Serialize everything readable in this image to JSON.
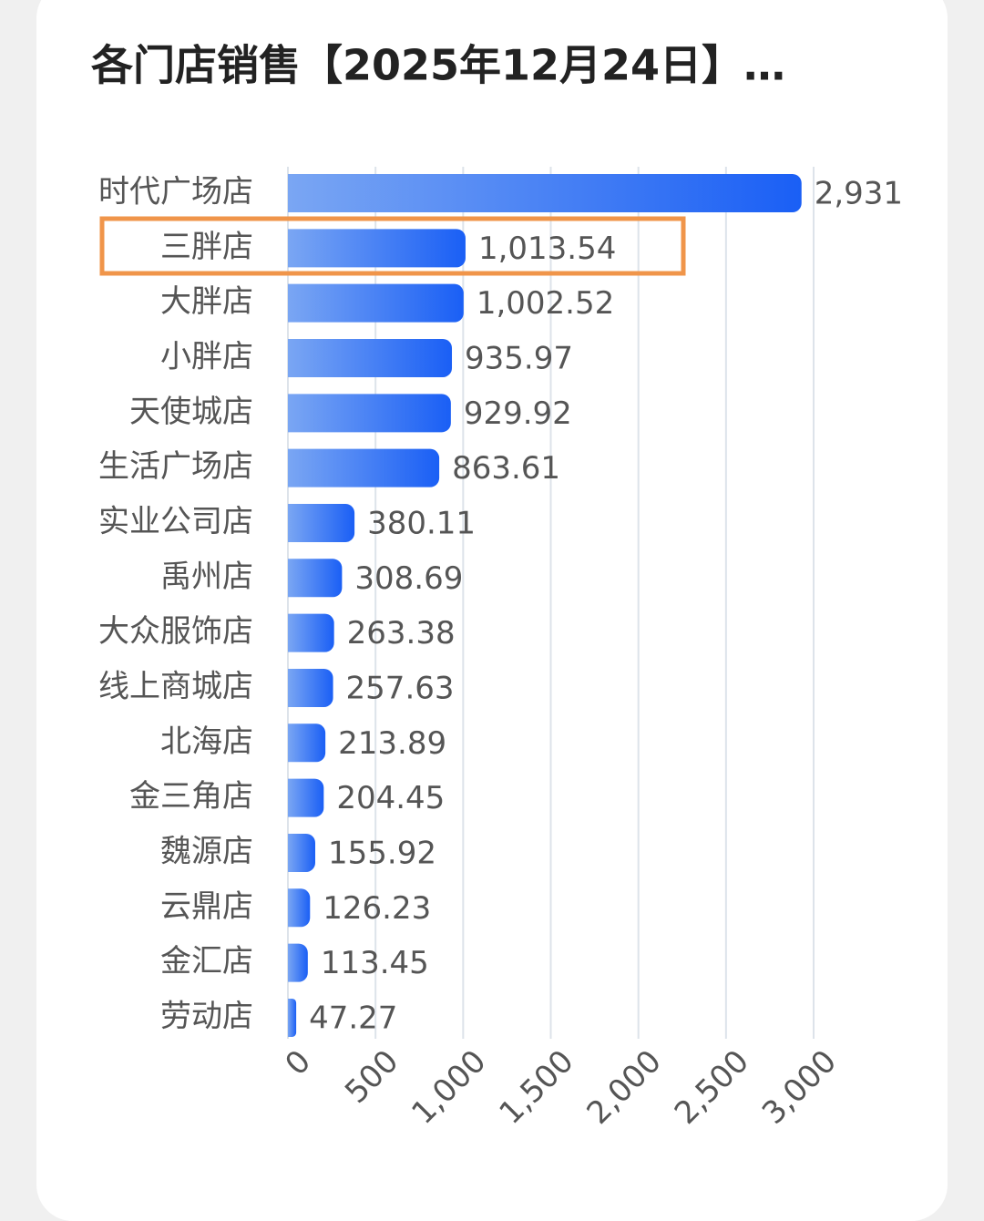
{
  "chart_data": {
    "type": "hbar",
    "title": "各门店销售【2025年12月24日】…",
    "categories": [
      "时代广场店",
      "三胖店",
      "大胖店",
      "小胖店",
      "天使城店",
      "生活广场店",
      "实业公司店",
      "禹州店",
      "大众服饰店",
      "线上商城店",
      "北海店",
      "金三角店",
      "魏源店",
      "云鼎店",
      "金汇店",
      "劳动店"
    ],
    "values": [
      2931,
      1013.54,
      1002.52,
      935.97,
      929.92,
      863.61,
      380.11,
      308.69,
      263.38,
      257.63,
      213.89,
      204.45,
      155.92,
      126.23,
      113.45,
      47.27
    ],
    "value_labels": [
      "2,931",
      "1,013.54",
      "1,002.52",
      "935.97",
      "929.92",
      "863.61",
      "380.11",
      "308.69",
      "263.38",
      "257.63",
      "213.89",
      "204.45",
      "155.92",
      "126.23",
      "113.45",
      "47.27"
    ],
    "xlim": [
      0,
      3000
    ],
    "xticks": [
      0,
      500,
      {
        "value": 1000,
        "label": "1,000"
      },
      {
        "value": 1500,
        "label": "1,500"
      },
      {
        "value": 2000,
        "label": "2,000"
      },
      {
        "value": 2500,
        "label": "2,500"
      },
      {
        "value": 3000,
        "label": "3,000"
      }
    ],
    "grid": true,
    "color": "#1a5ff5"
  }
}
